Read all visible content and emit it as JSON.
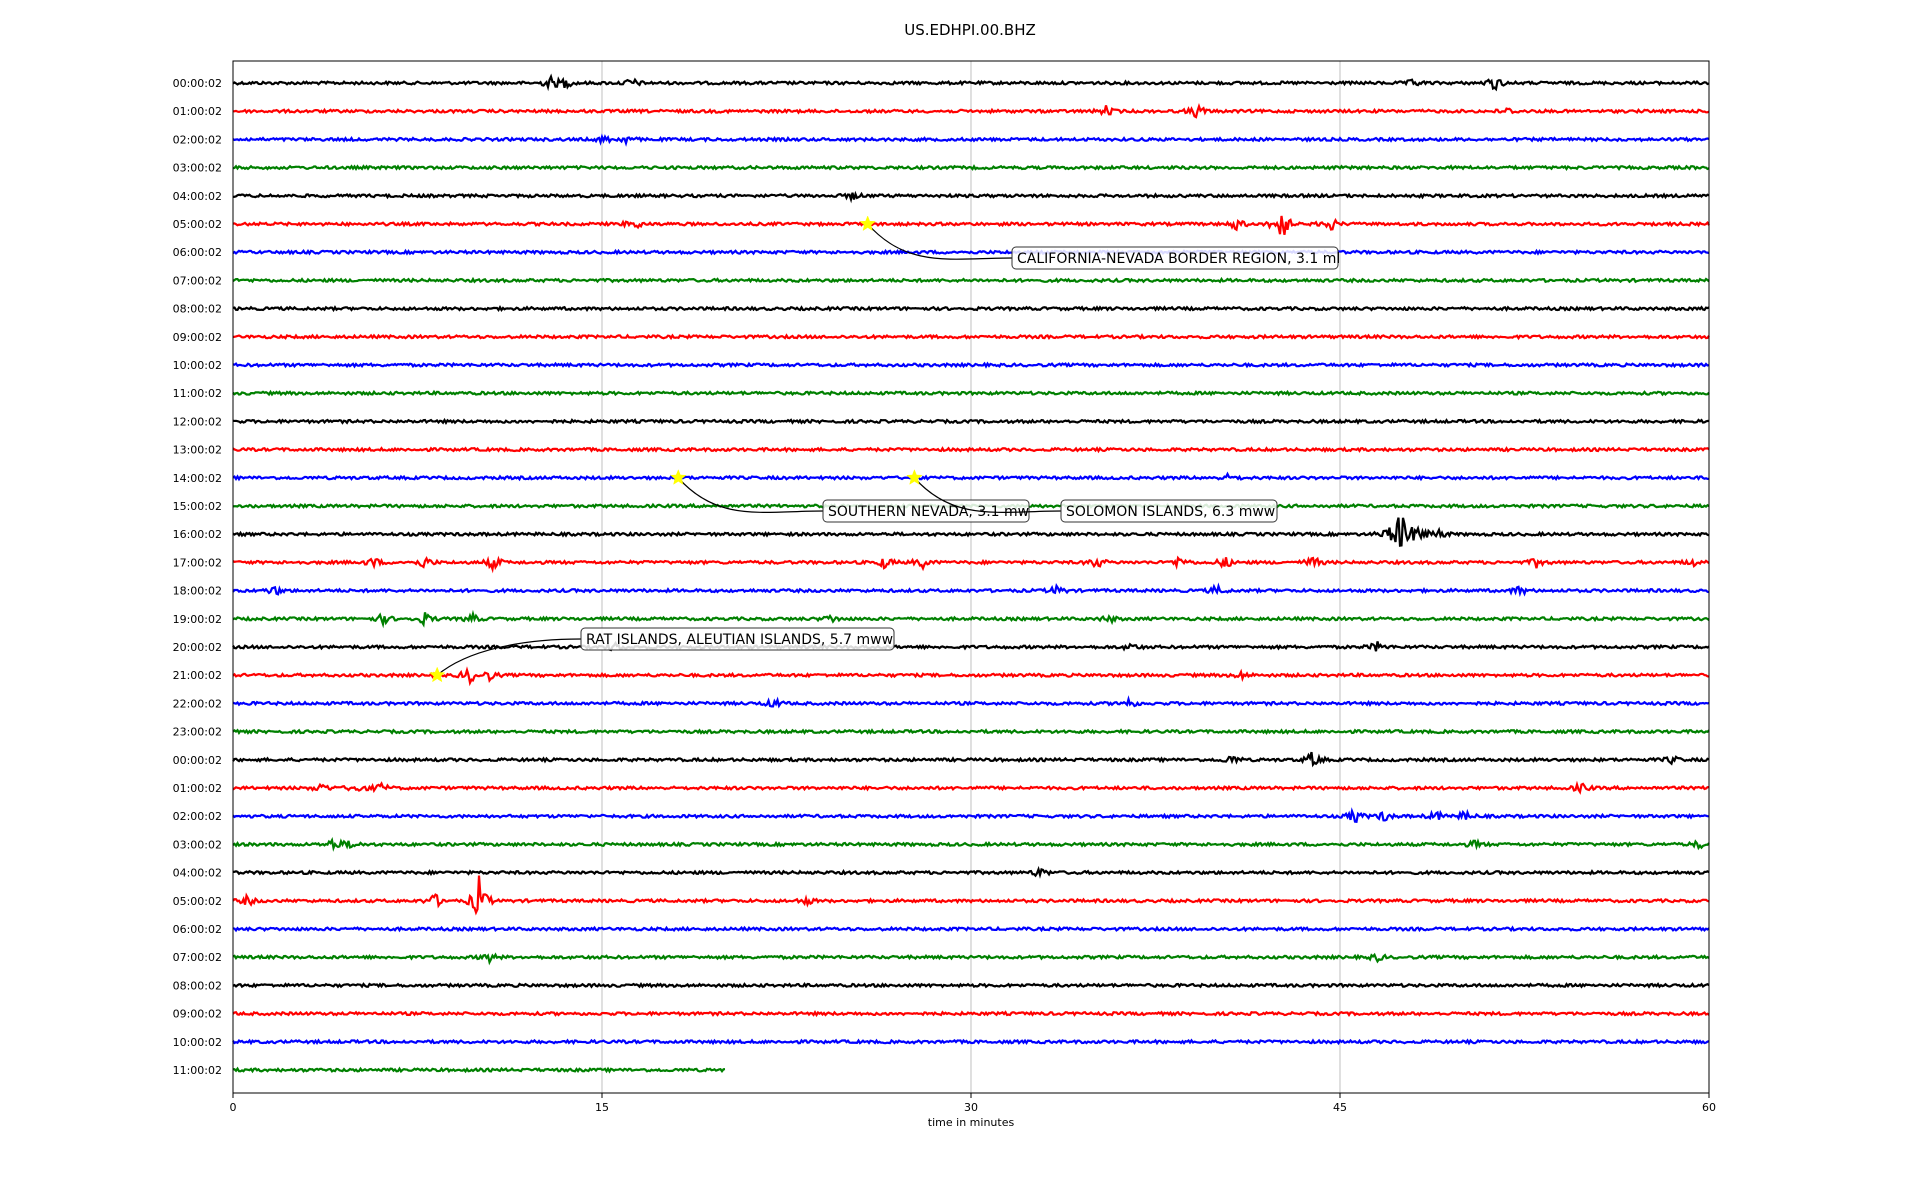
{
  "chart_data": {
    "type": "line",
    "title": "US.EDHPI.00.BHZ",
    "xlabel": "time in minutes",
    "ylabel": "",
    "xlim": [
      0,
      60
    ],
    "x_ticks": [
      "0",
      "15",
      "30",
      "45",
      "60"
    ],
    "grid": "vertical lines at 15, 30, 45",
    "legend": "none",
    "trace_colors": [
      "#000000",
      "#ff0000",
      "#0000ff",
      "#008000"
    ],
    "row_labels": [
      "00:00:02",
      "01:00:02",
      "02:00:02",
      "03:00:02",
      "04:00:02",
      "05:00:02",
      "06:00:02",
      "07:00:02",
      "08:00:02",
      "09:00:02",
      "10:00:02",
      "11:00:02",
      "12:00:02",
      "13:00:02",
      "14:00:02",
      "15:00:02",
      "16:00:02",
      "17:00:02",
      "18:00:02",
      "19:00:02",
      "20:00:02",
      "21:00:02",
      "22:00:02",
      "23:00:02",
      "00:00:02",
      "01:00:02",
      "02:00:02",
      "03:00:02",
      "04:00:02",
      "05:00:02",
      "06:00:02",
      "07:00:02",
      "08:00:02",
      "09:00:02",
      "10:00:02",
      "11:00:02"
    ],
    "last_row_end_minute": 20,
    "bursts": [
      {
        "row": 0,
        "minute": 12.9,
        "amp": 0.5
      },
      {
        "row": 0,
        "minute": 13.5,
        "amp": 0.4
      },
      {
        "row": 0,
        "minute": 16.2,
        "amp": 0.4
      },
      {
        "row": 0,
        "minute": 48.0,
        "amp": 0.3
      },
      {
        "row": 0,
        "minute": 51.3,
        "amp": 0.6
      },
      {
        "row": 1,
        "minute": 35.5,
        "amp": 0.4
      },
      {
        "row": 1,
        "minute": 39.2,
        "amp": 0.6
      },
      {
        "row": 1,
        "minute": 51.8,
        "amp": 0.25
      },
      {
        "row": 2,
        "minute": 15.1,
        "amp": 0.3
      },
      {
        "row": 2,
        "minute": 16.0,
        "amp": 0.3
      },
      {
        "row": 4,
        "minute": 25.2,
        "amp": 0.3
      },
      {
        "row": 5,
        "minute": 16.3,
        "amp": 0.5
      },
      {
        "row": 5,
        "minute": 40.8,
        "amp": 0.5
      },
      {
        "row": 5,
        "minute": 42.6,
        "amp": 1.8
      },
      {
        "row": 5,
        "minute": 44.6,
        "amp": 0.6
      },
      {
        "row": 14,
        "minute": 40.5,
        "amp": 0.3
      },
      {
        "row": 16,
        "minute": 46.9,
        "amp": 0.5
      },
      {
        "row": 16,
        "minute": 47.5,
        "amp": 2.3
      },
      {
        "row": 16,
        "minute": 48.2,
        "amp": 0.8
      },
      {
        "row": 16,
        "minute": 49.0,
        "amp": 0.4
      },
      {
        "row": 17,
        "minute": 5.7,
        "amp": 0.4
      },
      {
        "row": 17,
        "minute": 7.8,
        "amp": 0.5
      },
      {
        "row": 17,
        "minute": 10.6,
        "amp": 0.6
      },
      {
        "row": 17,
        "minute": 26.5,
        "amp": 0.5
      },
      {
        "row": 17,
        "minute": 28.0,
        "amp": 0.5
      },
      {
        "row": 17,
        "minute": 35.1,
        "amp": 0.5
      },
      {
        "row": 17,
        "minute": 38.5,
        "amp": 0.5
      },
      {
        "row": 17,
        "minute": 40.3,
        "amp": 0.5
      },
      {
        "row": 17,
        "minute": 43.9,
        "amp": 0.5
      },
      {
        "row": 17,
        "minute": 53.0,
        "amp": 0.4
      },
      {
        "row": 17,
        "minute": 59.3,
        "amp": 0.3
      },
      {
        "row": 18,
        "minute": 1.7,
        "amp": 0.4
      },
      {
        "row": 18,
        "minute": 33.5,
        "amp": 0.4
      },
      {
        "row": 18,
        "minute": 40.0,
        "amp": 0.4
      },
      {
        "row": 18,
        "minute": 52.3,
        "amp": 0.4
      },
      {
        "row": 19,
        "minute": 6.1,
        "amp": 0.4
      },
      {
        "row": 19,
        "minute": 7.8,
        "amp": 0.5
      },
      {
        "row": 19,
        "minute": 9.7,
        "amp": 0.4
      },
      {
        "row": 19,
        "minute": 24.3,
        "amp": 0.3
      },
      {
        "row": 19,
        "minute": 35.6,
        "amp": 0.3
      },
      {
        "row": 20,
        "minute": 15.5,
        "amp": 0.4
      },
      {
        "row": 20,
        "minute": 36.5,
        "amp": 0.3
      },
      {
        "row": 20,
        "minute": 46.5,
        "amp": 0.4
      },
      {
        "row": 21,
        "minute": 9.6,
        "amp": 0.7
      },
      {
        "row": 21,
        "minute": 10.4,
        "amp": 0.4
      },
      {
        "row": 21,
        "minute": 41.0,
        "amp": 0.3
      },
      {
        "row": 22,
        "minute": 22.0,
        "amp": 0.4
      },
      {
        "row": 22,
        "minute": 36.4,
        "amp": 0.4
      },
      {
        "row": 24,
        "minute": 40.6,
        "amp": 0.4
      },
      {
        "row": 24,
        "minute": 43.9,
        "amp": 0.7
      },
      {
        "row": 24,
        "minute": 58.5,
        "amp": 0.3
      },
      {
        "row": 25,
        "minute": 3.6,
        "amp": 0.4
      },
      {
        "row": 25,
        "minute": 5.0,
        "amp": 0.4
      },
      {
        "row": 25,
        "minute": 6.0,
        "amp": 0.4
      },
      {
        "row": 25,
        "minute": 54.8,
        "amp": 0.4
      },
      {
        "row": 26,
        "minute": 45.6,
        "amp": 0.6
      },
      {
        "row": 26,
        "minute": 46.8,
        "amp": 0.4
      },
      {
        "row": 26,
        "minute": 48.9,
        "amp": 0.4
      },
      {
        "row": 26,
        "minute": 50.1,
        "amp": 0.4
      },
      {
        "row": 27,
        "minute": 4.1,
        "amp": 0.5
      },
      {
        "row": 27,
        "minute": 4.8,
        "amp": 0.3
      },
      {
        "row": 27,
        "minute": 50.5,
        "amp": 0.3
      },
      {
        "row": 27,
        "minute": 59.6,
        "amp": 0.3
      },
      {
        "row": 28,
        "minute": 32.8,
        "amp": 0.4
      },
      {
        "row": 29,
        "minute": 0.6,
        "amp": 0.4
      },
      {
        "row": 29,
        "minute": 8.2,
        "amp": 0.6
      },
      {
        "row": 29,
        "minute": 10.0,
        "amp": 2.0
      },
      {
        "row": 29,
        "minute": 23.3,
        "amp": 0.3
      },
      {
        "row": 31,
        "minute": 10.4,
        "amp": 0.4
      },
      {
        "row": 31,
        "minute": 46.5,
        "amp": 0.3
      }
    ],
    "events": [
      {
        "label": "CALIFORNIA-NEVADA BORDER REGION, 3.1 ml",
        "row": 5,
        "minute": 25.8
      },
      {
        "label": "SOUTHERN NEVADA, 3.1 mw",
        "row": 14,
        "minute": 18.1
      },
      {
        "label": "SOLOMON ISLANDS, 6.3 mww",
        "row": 14,
        "minute": 27.7
      },
      {
        "label": "RAT ISLANDS, ALEUTIAN ISLANDS, 5.7 mww",
        "row": 21,
        "minute": 8.3
      }
    ]
  }
}
